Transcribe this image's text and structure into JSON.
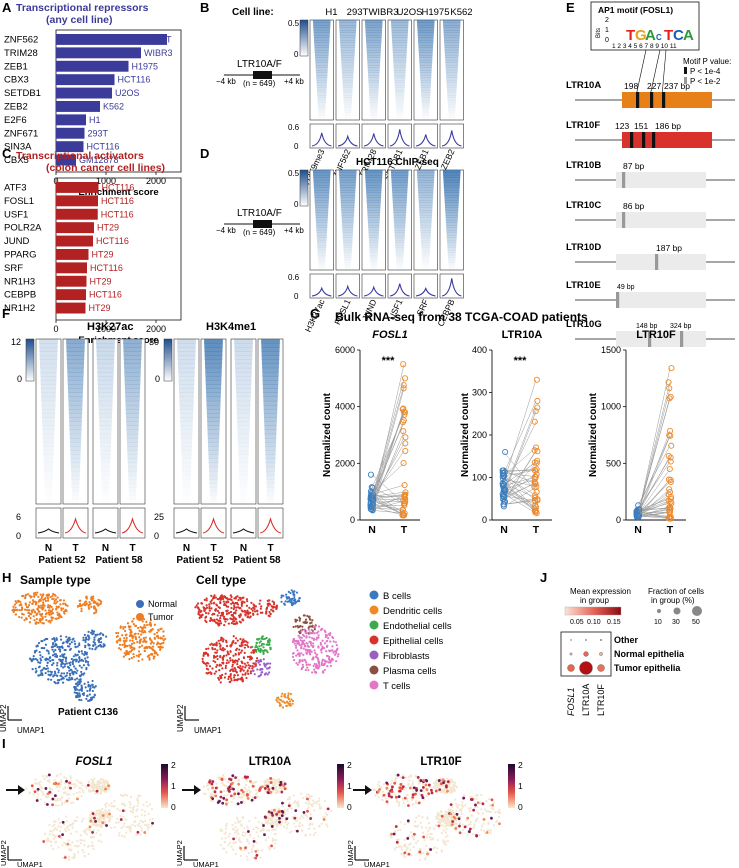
{
  "panel_labels": [
    "A",
    "B",
    "C",
    "D",
    "E",
    "F",
    "G",
    "H",
    "I",
    "J"
  ],
  "chart_data": [
    {
      "panel": "A",
      "type": "bar",
      "title": "Transcriptional repressors",
      "subtitle": "(any cell line)",
      "xlabel": "Enrichment score",
      "xlim": [
        0,
        2500
      ],
      "xticks": [
        "0",
        "1000",
        "2000"
      ],
      "categories": [
        "ZNF562",
        "TRIM28",
        "ZEB1",
        "CBX3",
        "SETDB1",
        "ZEB2",
        "E2F6",
        "ZNF671",
        "SIN3A",
        "CBX5"
      ],
      "values": [
        2220,
        1700,
        1450,
        1170,
        1120,
        880,
        600,
        570,
        550,
        400
      ],
      "cell_lines": [
        "293T",
        "WIBR3",
        "H1975",
        "HCT116",
        "U2OS",
        "K562",
        "H1",
        "293T",
        "HCT116",
        "GM12878"
      ],
      "color": "#3b3b9a"
    },
    {
      "panel": "C",
      "type": "bar",
      "title": "Transcriptional activators",
      "subtitle": "(colon cancer cell lines)",
      "xlabel": "Enrichment score",
      "xlim": [
        0,
        2500
      ],
      "xticks": [
        "0",
        "1000",
        "2000"
      ],
      "categories": [
        "ATF3",
        "FOSL1",
        "USF1",
        "POLR2A",
        "JUND",
        "PPARG",
        "SRF",
        "NR1H3",
        "CEBPB",
        "NR1H2"
      ],
      "values": [
        850,
        840,
        835,
        760,
        740,
        650,
        620,
        610,
        600,
        590
      ],
      "cell_lines": [
        "HCT116",
        "HCT116",
        "HCT116",
        "HT29",
        "HCT116",
        "HT29",
        "HCT116",
        "HT29",
        "HCT116",
        "HT29"
      ],
      "color": "#b22222"
    },
    {
      "panel": "G1",
      "type": "scatter",
      "title": "FOSL1",
      "ylabel": "Normalized count",
      "ylim": [
        0,
        6000
      ],
      "yticks": [
        "0",
        "2000",
        "4000",
        "6000"
      ],
      "categories": [
        "N",
        "T"
      ],
      "significance": "***",
      "max_values": [
        1600,
        5500
      ]
    },
    {
      "panel": "G2",
      "type": "scatter",
      "title": "LTR10A",
      "ylabel": "Normalized count",
      "ylim": [
        0,
        400
      ],
      "yticks": [
        "0",
        "100",
        "200",
        "300",
        "400"
      ],
      "categories": [
        "N",
        "T"
      ],
      "significance": "***",
      "max_values": [
        160,
        330
      ]
    },
    {
      "panel": "G3",
      "type": "scatter",
      "title": "LTR10F",
      "ylabel": "Normalized count",
      "ylim": [
        0,
        1500
      ],
      "yticks": [
        "0",
        "500",
        "1000",
        "1500"
      ],
      "categories": [
        "N",
        "T"
      ],
      "significance": "",
      "max_values": [
        130,
        1340
      ]
    }
  ],
  "panelB": {
    "cell_line_label": "Cell line:",
    "columns": [
      "H1",
      "293T",
      "WIBR3",
      "U2OS",
      "H1975",
      "K562"
    ],
    "marks": [
      "H3K9me3",
      "ZNF562",
      "TRIM28",
      "SETDB1",
      "ZEB1",
      "ZEB2"
    ],
    "scale_top": "0.5",
    "scale_bottom": "0",
    "profile_top": "0.6",
    "profile_bottom": "0",
    "element": "LTR10A/F",
    "left_kb": "−4 kb",
    "right_kb": "+4 kb",
    "n": "(n = 649)"
  },
  "panelD": {
    "title": "HCT116 ChIP-seq",
    "marks": [
      "H3K27ac",
      "FOSL1",
      "JUND",
      "USF1",
      "SRF",
      "CEBPB"
    ],
    "scale_top": "0.5",
    "scale_bottom": "0",
    "profile_top": "0.6",
    "profile_bottom": "0",
    "element": "LTR10A/F",
    "left_kb": "−4 kb",
    "right_kb": "+4 kb",
    "n": "(n = 649)"
  },
  "panelE": {
    "motif_title": "AP1 motif (FOSL1)",
    "bits_label": "Bits",
    "y_ticks": [
      "2",
      "1",
      "0"
    ],
    "positions": "1 2 3 4 5 6 7 8 9 10 11",
    "legend_title": "Motif P value:",
    "legend_strong": "P < 1e-4",
    "legend_weak": "P < 1e-2",
    "elements": [
      {
        "name": "LTR10A",
        "color": "#e8801a",
        "sites": [
          "198",
          "227",
          "237 bp"
        ]
      },
      {
        "name": "LTR10F",
        "color": "#d8322a",
        "sites": [
          "123",
          "151",
          "186 bp"
        ]
      },
      {
        "name": "LTR10B",
        "color": "#ebebeb",
        "sites": [
          "87 bp"
        ]
      },
      {
        "name": "LTR10C",
        "color": "#ebebeb",
        "sites": [
          "86 bp"
        ]
      },
      {
        "name": "LTR10D",
        "color": "#ebebeb",
        "sites": [
          "187 bp"
        ]
      },
      {
        "name": "LTR10E",
        "color": "#ebebeb",
        "sites": [
          "49 bp"
        ]
      },
      {
        "name": "LTR10G",
        "color": "#ebebeb",
        "sites": [
          "148 bp",
          "324 bp"
        ]
      }
    ]
  },
  "panelF": {
    "marks": [
      "H3K27ac",
      "H3K4me1"
    ],
    "scale1_top": "12",
    "scale1_bottom": "0",
    "scale2_top": "30",
    "scale2_bottom": "0",
    "profile1_top": "6",
    "profile1_bottom": "0",
    "profile2_top": "25",
    "profile2_bottom": "0",
    "conditions": [
      "N",
      "T",
      "N",
      "T",
      "N",
      "T",
      "N",
      "T"
    ],
    "patients": [
      "Patient 52",
      "Patient 58",
      "Patient 52",
      "Patient 58"
    ]
  },
  "panelG": {
    "title": "Bulk RNA-seq from 38 TCGA-COAD patients"
  },
  "panelH": {
    "title1": "Sample type",
    "title2": "Cell type",
    "sample_legend": [
      {
        "label": "Normal",
        "color": "#3a6fb8"
      },
      {
        "label": "Tumor",
        "color": "#ee7d22"
      }
    ],
    "cell_legend": [
      {
        "label": "B cells",
        "color": "#3a78c0"
      },
      {
        "label": "Dendritic cells",
        "color": "#f08a24"
      },
      {
        "label": "Endothelial cells",
        "color": "#3caa4a"
      },
      {
        "label": "Epithelial cells",
        "color": "#d8322a"
      },
      {
        "label": "Fibroblasts",
        "color": "#9a5fc4"
      },
      {
        "label": "Plasma cells",
        "color": "#8b5040"
      },
      {
        "label": "T cells",
        "color": "#e277c8"
      }
    ],
    "patient": "Patient C136",
    "umap1": "UMAP1",
    "umap2": "UMAP2"
  },
  "panelI": {
    "genes": [
      "FOSL1",
      "LTR10A",
      "LTR10F"
    ],
    "scale": [
      "2",
      "1",
      "0"
    ],
    "umap1": "UMAP1",
    "umap2": "UMAP2"
  },
  "panelJ": {
    "mean_title": "Mean expression",
    "mean_title2": "in group",
    "mean_ticks": [
      "0.05",
      "0.10",
      "0.15"
    ],
    "frac_title": "Fraction of cells",
    "frac_title2": "in group (%)",
    "frac_ticks": [
      "10",
      "30",
      "50"
    ],
    "groups": [
      "Other",
      "Normal epithelia",
      "Tumor epithelia"
    ],
    "genes": [
      "FOSL1",
      "LTR10A",
      "LTR10F"
    ]
  }
}
